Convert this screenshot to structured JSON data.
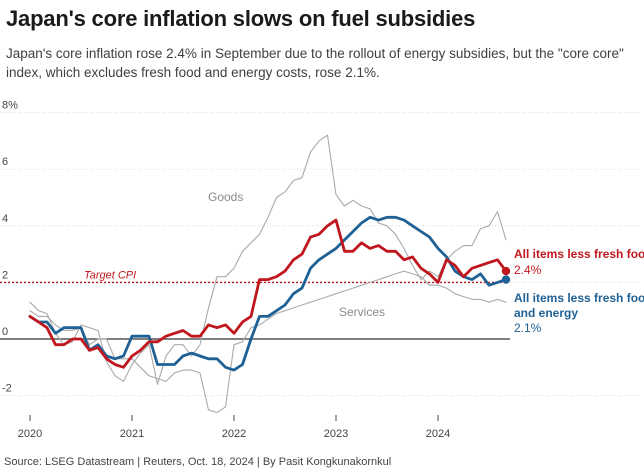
{
  "title": "Japan's core inflation slows on fuel subsidies",
  "subtitle": "Japan's core inflation rose 2.4% in September due to the rollout of energy subsidies, but the \"core core\" index, which excludes fresh food and energy costs, rose 2.1%.",
  "footer": "Source: LSEG Datastream | Reuters, Oct. 18, 2024 | By Pasit Kongkunakornkul",
  "chart_data": {
    "type": "line",
    "x_start": "2020-01",
    "x_ticks": [
      "2020",
      "2021",
      "2022",
      "2023",
      "2024"
    ],
    "y_ticks": [
      "8%",
      "6",
      "4",
      "2",
      "0",
      "-2"
    ],
    "ylim": [
      -2.5,
      8
    ],
    "grid": true,
    "target_label": "Target CPI",
    "target_value": 2,
    "colors": {
      "core": "#c0171e",
      "core_core": "#1f6195",
      "goods": "#aaaaaa",
      "services": "#aaaaaa",
      "target": "#c0171e",
      "grid": "#d9d9d9",
      "zero": "#333333"
    },
    "series": [
      {
        "key": "goods",
        "name": "Goods",
        "values": [
          1.3,
          1.0,
          0.9,
          0.2,
          -0.2,
          -0.1,
          0.5,
          0.4,
          0.3,
          -0.8,
          -1.3,
          -1.5,
          -0.9,
          -0.5,
          -0.2,
          -1.6,
          -0.6,
          -0.2,
          -0.2,
          -0.6,
          -0.2,
          1.1,
          2.2,
          2.2,
          2.5,
          3.1,
          3.4,
          3.7,
          4.3,
          5.0,
          5.2,
          5.6,
          5.7,
          6.6,
          7.0,
          7.2,
          5.1,
          4.7,
          4.9,
          4.7,
          4.6,
          4.1,
          4.0,
          3.7,
          3.2,
          2.6,
          2.1,
          2.4,
          2.2,
          2.8,
          3.1,
          3.3,
          3.3,
          3.9,
          4.0,
          4.5,
          3.5
        ]
      },
      {
        "key": "services",
        "name": "Services",
        "values": [
          1.0,
          0.8,
          0.8,
          0.5,
          0.3,
          0.3,
          0.4,
          -0.2,
          0.0,
          0.0,
          -0.7,
          -0.7,
          -0.7,
          -1.0,
          -1.3,
          -1.4,
          -1.5,
          -1.2,
          -1.1,
          -1.1,
          -1.2,
          -2.5,
          -2.6,
          -2.4,
          -0.2,
          -0.1,
          0.4,
          0.5,
          0.7,
          0.9,
          1.0,
          1.1,
          1.2,
          1.3,
          1.4,
          1.5,
          1.6,
          1.7,
          1.8,
          1.9,
          2.0,
          2.1,
          2.2,
          2.3,
          2.4,
          2.3,
          2.2,
          1.9,
          1.9,
          1.8,
          1.6,
          1.5,
          1.4,
          1.4,
          1.3,
          1.4,
          1.3
        ]
      },
      {
        "key": "core",
        "name": "All items less fresh food",
        "last_value_label": "2.4%",
        "values": [
          0.8,
          0.6,
          0.4,
          -0.2,
          -0.2,
          0.0,
          0.0,
          -0.4,
          -0.3,
          -0.7,
          -0.9,
          -1.0,
          -0.6,
          -0.4,
          -0.1,
          -0.1,
          0.1,
          0.2,
          0.3,
          0.1,
          0.1,
          0.5,
          0.4,
          0.5,
          0.2,
          0.6,
          0.8,
          2.1,
          2.1,
          2.2,
          2.4,
          2.8,
          3.0,
          3.6,
          3.7,
          4.0,
          4.2,
          3.1,
          3.1,
          3.4,
          3.2,
          3.3,
          3.1,
          3.1,
          2.8,
          2.9,
          2.5,
          2.3,
          2.0,
          2.8,
          2.6,
          2.2,
          2.5,
          2.6,
          2.7,
          2.8,
          2.4
        ]
      },
      {
        "key": "core_core",
        "name": "All items less fresh food and energy",
        "last_value_label": "2.1%",
        "values": [
          0.8,
          0.6,
          0.6,
          0.2,
          0.4,
          0.4,
          0.4,
          -0.4,
          -0.2,
          -0.6,
          -0.7,
          -0.6,
          0.1,
          0.1,
          0.1,
          -0.9,
          -0.9,
          -0.9,
          -0.6,
          -0.5,
          -0.6,
          -0.7,
          -0.7,
          -1.0,
          -1.1,
          -0.9,
          0.0,
          0.8,
          0.8,
          1.0,
          1.2,
          1.6,
          1.8,
          2.5,
          2.8,
          3.0,
          3.2,
          3.5,
          3.8,
          4.1,
          4.3,
          4.2,
          4.3,
          4.3,
          4.2,
          4.0,
          3.8,
          3.6,
          3.2,
          2.9,
          2.4,
          2.2,
          2.1,
          2.3,
          1.9,
          2.0,
          2.1
        ]
      }
    ],
    "annotations": [
      {
        "key": "goods",
        "text": "Goods"
      },
      {
        "key": "services",
        "text": "Services"
      }
    ]
  }
}
